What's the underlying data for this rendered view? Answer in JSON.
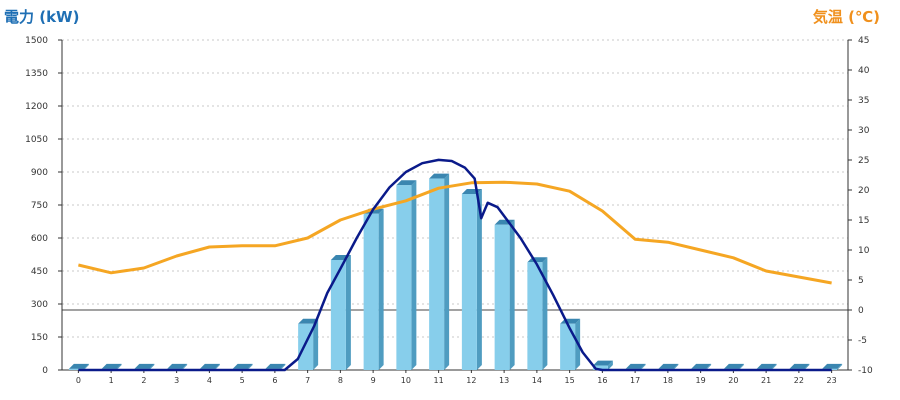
{
  "chart_data": {
    "type": "bar",
    "title": "",
    "left_axis": {
      "label": "電力 (kW)",
      "ylim": [
        0,
        1500
      ],
      "ticks": [
        0,
        150,
        300,
        450,
        600,
        750,
        900,
        1050,
        1200,
        1350,
        1500
      ]
    },
    "right_axis": {
      "label": "気温 (℃)",
      "ylim": [
        -10,
        45
      ],
      "ticks": [
        -10,
        -5,
        0,
        5,
        10,
        15,
        20,
        25,
        30,
        35,
        40,
        45
      ]
    },
    "categories": [
      "0",
      "1",
      "2",
      "3",
      "4",
      "5",
      "6",
      "7",
      "8",
      "9",
      "10",
      "11",
      "12",
      "13",
      "14",
      "15",
      "16",
      "17",
      "18",
      "19",
      "20",
      "21",
      "22",
      "23"
    ],
    "grid": true,
    "series": [
      {
        "type": "bar",
        "axis": "left",
        "values": [
          5,
          5,
          5,
          5,
          5,
          5,
          5,
          210,
          500,
          710,
          840,
          870,
          800,
          660,
          490,
          210,
          20,
          5,
          5,
          5,
          5,
          5,
          5,
          5
        ]
      },
      {
        "type": "line",
        "axis": "left",
        "x": [
          0,
          5,
          5.8,
          6.3,
          6.7,
          7.2,
          7.6,
          8,
          8.5,
          9,
          9.5,
          10,
          10.5,
          11,
          11.4,
          11.8,
          12.1,
          12.3,
          12.5,
          12.8,
          13.1,
          13.5,
          14,
          14.5,
          15,
          15.4,
          15.8,
          16,
          17,
          18,
          19,
          20,
          21,
          22,
          23
        ],
        "values": [
          0,
          0,
          0,
          0,
          50,
          200,
          350,
          460,
          600,
          730,
          830,
          900,
          940,
          955,
          950,
          920,
          870,
          690,
          760,
          740,
          680,
          600,
          480,
          340,
          190,
          80,
          5,
          0,
          0,
          0,
          0,
          0,
          0,
          0,
          0
        ]
      },
      {
        "type": "line",
        "axis": "right",
        "values": [
          7.5,
          6.2,
          7,
          9,
          10.5,
          10.7,
          10.7,
          12,
          15,
          16.8,
          18.2,
          20.3,
          21.2,
          21.3,
          21,
          19.8,
          16.5,
          11.8,
          11.3,
          10,
          8.7,
          6.5,
          5.5,
          4.5
        ]
      }
    ],
    "colors": {
      "bar_front": "#87ceeb",
      "bar_side": "#4f9cc0",
      "bar_top": "#3a86b0",
      "power_line": "#0a1a8a",
      "temp_line": "#f5a623",
      "left_title": "#1f6fb4",
      "right_title": "#f0901c"
    }
  }
}
